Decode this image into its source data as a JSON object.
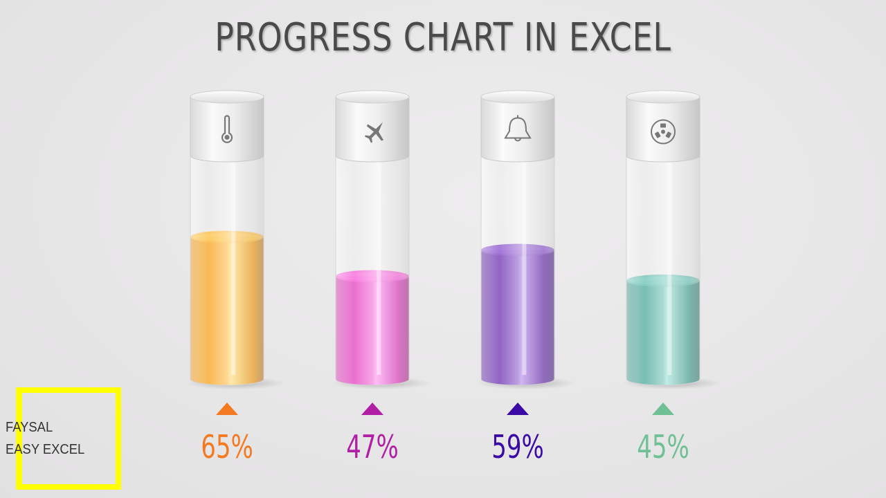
{
  "title": "PROGRESS CHART IN EXCEL",
  "brand": {
    "line1": "FAYSAL",
    "line2": "EASY EXCEL",
    "box_color": "#ffff00"
  },
  "chart_data": {
    "type": "bar",
    "title": "PROGRESS CHART IN EXCEL",
    "categories": [
      "thermometer-icon",
      "airplane-icon",
      "bell-icon",
      "fan-icon"
    ],
    "values": [
      65,
      47,
      59,
      45
    ],
    "labels": [
      "65%",
      "47%",
      "59%",
      "45%"
    ],
    "ylim": [
      0,
      100
    ],
    "colors": [
      "#f7a11a",
      "#e23fbf",
      "#6a2fb0",
      "#4ba79a"
    ],
    "label_colors": [
      "#f47a21",
      "#b01fa6",
      "#3b0aa5",
      "#70c095"
    ],
    "grid": false,
    "legend": "none"
  }
}
